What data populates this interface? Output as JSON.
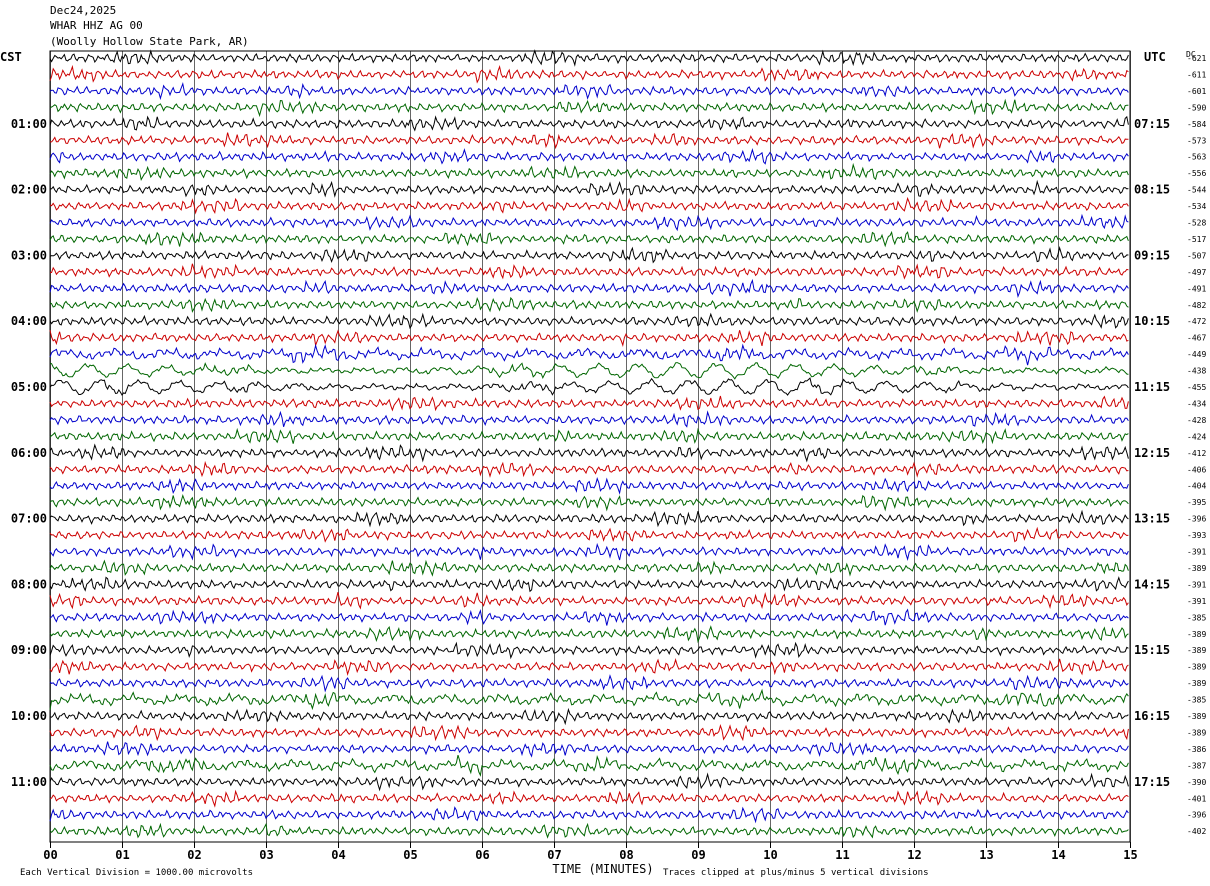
{
  "header": {
    "date": "Dec24,2025",
    "station": "WHAR HHZ AG 00",
    "location": "(Woolly Hollow State Park, AR)"
  },
  "chart_data": {
    "type": "line",
    "title": "",
    "left_timezone": "CST",
    "right_timezone": "UTC",
    "dc_label": "DC",
    "xlabel": "TIME (MINUTES)",
    "x_ticks": [
      "00",
      "01",
      "02",
      "03",
      "04",
      "05",
      "06",
      "07",
      "08",
      "09",
      "10",
      "11",
      "12",
      "13",
      "14",
      "15"
    ],
    "xlim": [
      0,
      15
    ],
    "left_hour_labels": [
      "01:00",
      "02:00",
      "03:00",
      "04:00",
      "05:00",
      "06:00",
      "07:00",
      "08:00",
      "09:00",
      "10:00",
      "11:00"
    ],
    "right_hour_labels": [
      "07:15",
      "08:15",
      "09:15",
      "10:15",
      "11:15",
      "12:15",
      "13:15",
      "14:15",
      "15:15",
      "16:15",
      "17:15"
    ],
    "traces_per_hour": 4,
    "trace_count": 48,
    "trace_colors": [
      "#000000",
      "#cc0000",
      "#0000cc",
      "#006600"
    ],
    "dc_offsets": [
      "-621",
      "-611",
      "-601",
      "-590",
      "-584",
      "-573",
      "-563",
      "-556",
      "-544",
      "-534",
      "-528",
      "-517",
      "-507",
      "-497",
      "-491",
      "-482",
      "-472",
      "-467",
      "-449",
      "-438",
      "-455",
      "-434",
      "-428",
      "-424",
      "-412",
      "-406",
      "-404",
      "-395",
      "-396",
      "-393",
      "-391",
      "-389",
      "-391",
      "-391",
      "-385",
      "-389",
      "-389",
      "-389",
      "-389",
      "-385",
      "-389",
      "-389",
      "-386",
      "-387",
      "-390",
      "-401",
      "-396",
      "-402"
    ],
    "footer_left": "Each Vertical Division = 1000.00 microvolts",
    "footer_right": "Traces clipped at plus/minus 5 vertical divisions",
    "grid": true
  }
}
